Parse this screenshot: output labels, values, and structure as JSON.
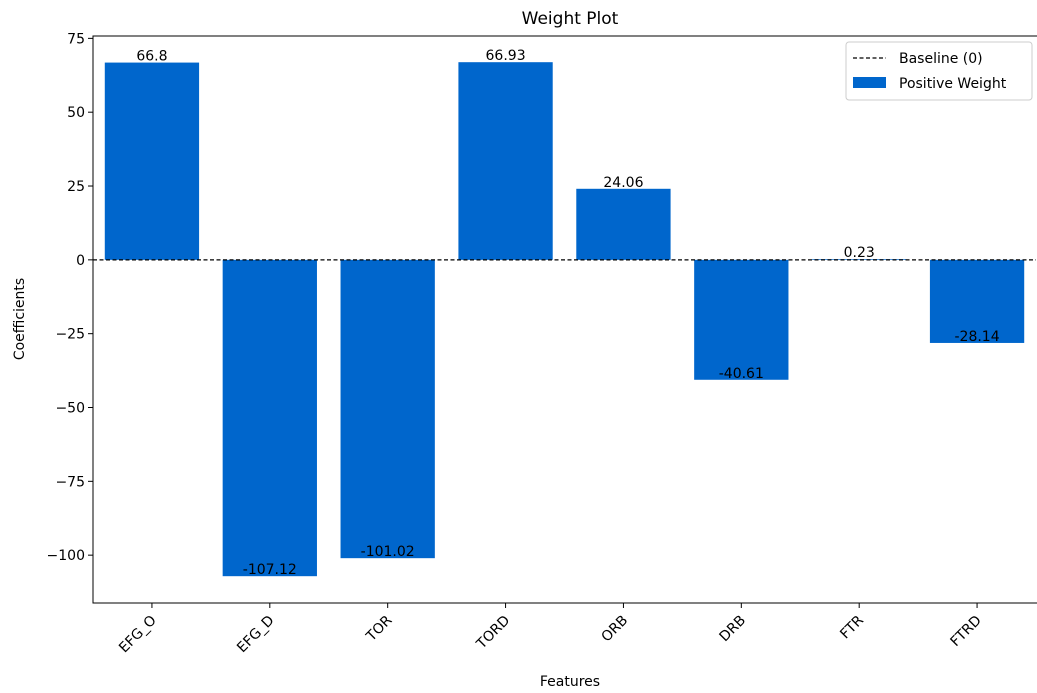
{
  "chart_data": {
    "type": "bar",
    "title": "Weight Plot",
    "xlabel": "Features",
    "ylabel": "Coefficients",
    "categories": [
      "EFG_O",
      "EFG_D",
      "TOR",
      "TORD",
      "ORB",
      "DRB",
      "FTR",
      "FTRD"
    ],
    "values": [
      66.8,
      -107.12,
      -101.02,
      66.93,
      24.06,
      -40.61,
      0.23,
      -28.14
    ],
    "value_labels": [
      "66.8",
      "-107.12",
      "-101.02",
      "66.93",
      "24.06",
      "-40.61",
      "0.23",
      "-28.14"
    ],
    "ylim": [
      -116.2,
      75.8
    ],
    "yticks": [
      75,
      50,
      25,
      0,
      -25,
      -50,
      -75,
      -100
    ],
    "ytick_labels": [
      "75",
      "50",
      "25",
      "0",
      "−25",
      "−50",
      "−75",
      "−100"
    ],
    "bar_color": "#0066cc",
    "baseline": {
      "value": 0,
      "style": "dashed",
      "color": "#000000"
    },
    "legend": {
      "position": "top-right",
      "entries": [
        {
          "label": "Baseline (0)",
          "kind": "dashed-line",
          "color": "#000000"
        },
        {
          "label": "Positive Weight",
          "kind": "patch",
          "color": "#0066cc"
        }
      ]
    },
    "grid": false
  }
}
